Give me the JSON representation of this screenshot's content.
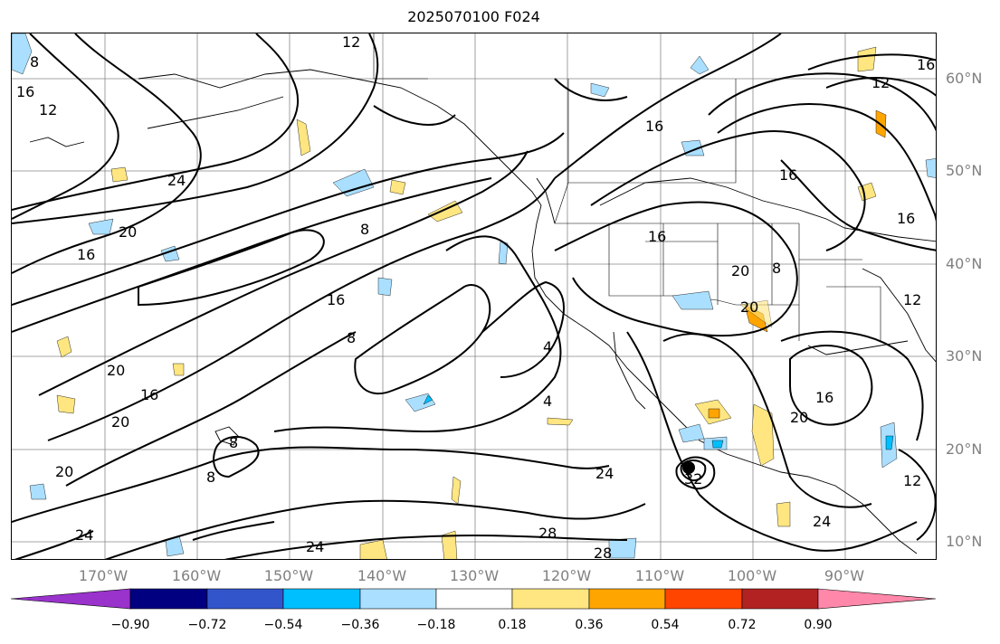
{
  "title": "2025070100 F024",
  "lat_labels": [
    "60°N",
    "50°N",
    "40°N",
    "30°N",
    "20°N",
    "10°N"
  ],
  "lon_labels": [
    "170°W",
    "160°W",
    "150°W",
    "140°W",
    "130°W",
    "120°W",
    "110°W",
    "100°W",
    "90°W"
  ],
  "colorbar": {
    "ticks": [
      "−0.90",
      "−0.72",
      "−0.54",
      "−0.36",
      "−0.18",
      "0.18",
      "0.36",
      "0.54",
      "0.72",
      "0.90"
    ],
    "colors": [
      "#9933cc",
      "#000080",
      "#3355cc",
      "#00bfff",
      "#aadfff",
      "#ffffff",
      "#ffe680",
      "#ffa500",
      "#ff4500",
      "#b22222",
      "#ff88aa"
    ]
  },
  "contour_labels": [
    "8",
    "12",
    "16",
    "16",
    "12",
    "24",
    "20",
    "16",
    "8",
    "16",
    "8",
    "20",
    "16",
    "20",
    "20",
    "8",
    "8",
    "24",
    "24",
    "4",
    "4",
    "24",
    "28",
    "28",
    "32",
    "16",
    "16",
    "20",
    "8",
    "20",
    "16",
    "20",
    "12",
    "12",
    "24",
    "16",
    "12",
    "16"
  ]
}
